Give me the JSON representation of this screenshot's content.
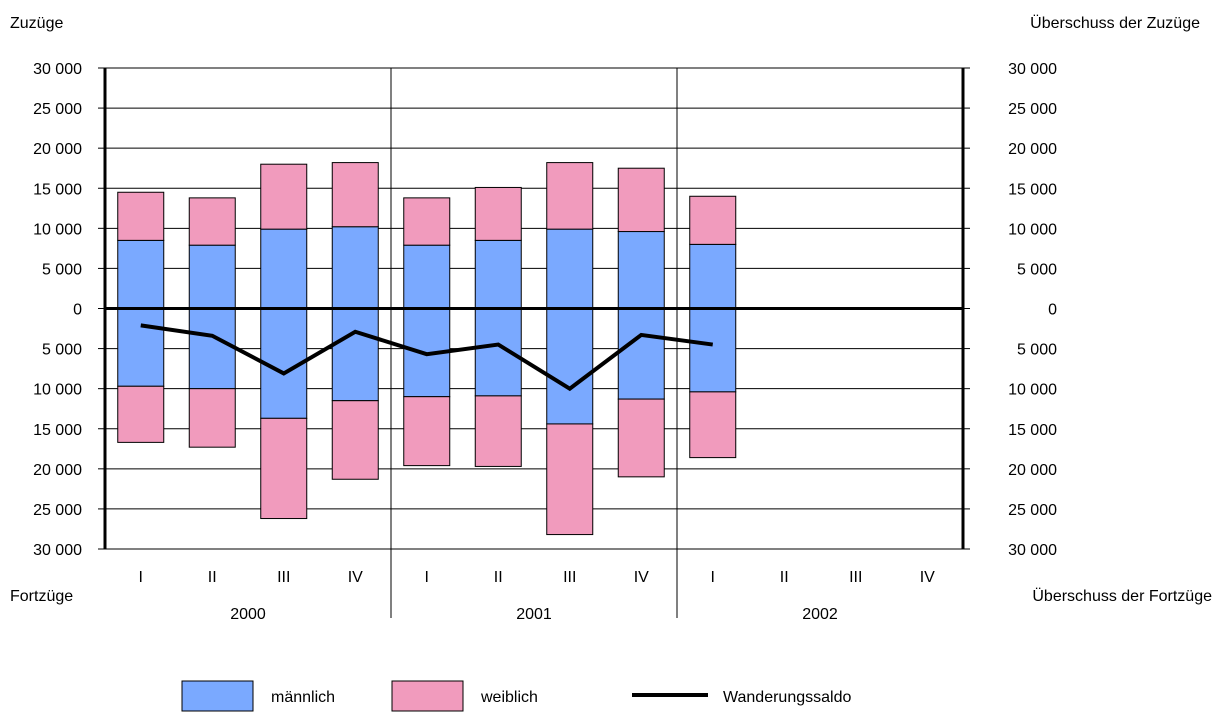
{
  "chart_data": {
    "type": "bar",
    "stacked": true,
    "left_top_label": "Zuzüge",
    "left_bottom_label": "Fortzüge",
    "right_top_label": "Überschuss der Zuzüge",
    "right_bottom_label": "Überschuss der Fortzüge",
    "ylim": [
      -30000,
      30000
    ],
    "ytick_values": [
      30000,
      25000,
      20000,
      15000,
      10000,
      5000,
      0,
      -5000,
      -10000,
      -15000,
      -20000,
      -25000,
      -30000
    ],
    "ytick_labels": [
      "30 000",
      "25 000",
      "20 000",
      "15 000",
      "10 000",
      "5 000",
      "0",
      "5 000",
      "10 000",
      "15 000",
      "20 000",
      "25 000",
      "30 000"
    ],
    "categories": [
      "I",
      "II",
      "III",
      "IV",
      "I",
      "II",
      "III",
      "IV",
      "I",
      "II",
      "III",
      "IV"
    ],
    "years": [
      "2000",
      "2001",
      "2002"
    ],
    "colors": {
      "maennlich": "#7aa9ff",
      "weiblich": "#f19bbd",
      "saldo": "#000000"
    },
    "series": [
      {
        "name": "männlich",
        "zuzuege": [
          8500,
          7900,
          9900,
          10200,
          7900,
          8500,
          9900,
          9600,
          8000,
          null,
          null,
          null
        ],
        "fortzuege": [
          -9700,
          -10000,
          -13700,
          -11500,
          -11000,
          -10900,
          -14400,
          -11300,
          -10400,
          null,
          null,
          null
        ]
      },
      {
        "name": "weiblich",
        "zuzuege": [
          6000,
          5900,
          8100,
          8000,
          5900,
          6600,
          8300,
          7900,
          6000,
          null,
          null,
          null
        ],
        "fortzuege": [
          -7000,
          -7300,
          -12500,
          -9800,
          -8600,
          -8800,
          -13800,
          -9700,
          -8200,
          null,
          null,
          null
        ]
      },
      {
        "name": "Wanderungssaldo",
        "values": [
          -2100,
          -3400,
          -8100,
          -2900,
          -5700,
          -4500,
          -10000,
          -3300,
          -4500,
          null,
          null,
          null
        ]
      }
    ],
    "legend": [
      {
        "label": "männlich"
      },
      {
        "label": "weiblich"
      },
      {
        "label": "Wanderungssaldo"
      }
    ],
    "legend_position": "bottom",
    "grid": true
  }
}
